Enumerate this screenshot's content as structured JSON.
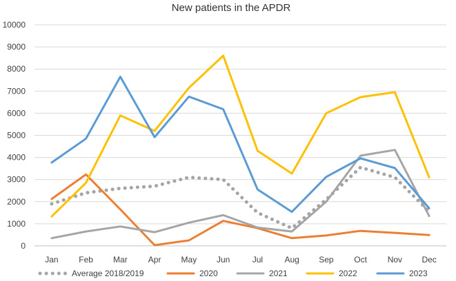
{
  "chart_data": {
    "type": "line",
    "title": "New patients  in the APDR",
    "xlabel": "",
    "ylabel": "",
    "ylim": [
      0,
      10000
    ],
    "yticks": [
      0,
      1000,
      2000,
      3000,
      4000,
      5000,
      6000,
      7000,
      8000,
      9000,
      10000
    ],
    "grid": true,
    "legend": "bottom",
    "categories": [
      "Jan",
      "Feb",
      "Mar",
      "Apr",
      "May",
      "Jun",
      "Jul",
      "Aug",
      "Sep",
      "Oct",
      "Nov",
      "Dec"
    ],
    "series": [
      {
        "name": "Average 2018/2019",
        "color": "#A5A5A5",
        "style": "dotted",
        "values": [
          1900,
          2400,
          2600,
          2700,
          3100,
          3000,
          1500,
          800,
          2100,
          3550,
          3100,
          1550
        ]
      },
      {
        "name": "2020",
        "color": "#ED7D31",
        "style": "solid",
        "values": [
          2120,
          3230,
          1650,
          30,
          250,
          1130,
          800,
          350,
          470,
          680,
          590,
          490
        ]
      },
      {
        "name": "2021",
        "color": "#A5A5A5",
        "style": "solid",
        "values": [
          350,
          650,
          880,
          620,
          1050,
          1390,
          830,
          650,
          2000,
          4080,
          4340,
          1350
        ]
      },
      {
        "name": "2022",
        "color": "#FFC000",
        "style": "solid",
        "values": [
          1330,
          2850,
          5900,
          5200,
          7150,
          8600,
          4300,
          3270,
          6000,
          6730,
          6950,
          3100
        ]
      },
      {
        "name": "2023",
        "color": "#5B9BD5",
        "style": "solid",
        "values": [
          3770,
          4850,
          7650,
          4920,
          6750,
          6180,
          2550,
          1540,
          3120,
          3960,
          3520,
          1700
        ]
      }
    ]
  }
}
